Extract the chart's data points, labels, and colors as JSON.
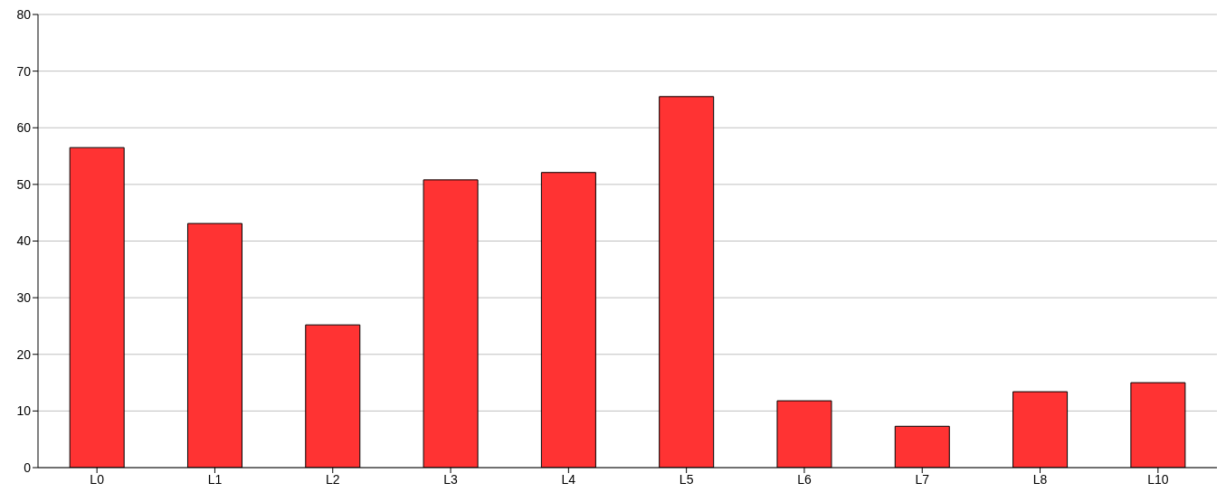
{
  "chart_data": {
    "type": "bar",
    "categories": [
      "L0",
      "L1",
      "L2",
      "L3",
      "L4",
      "L5",
      "L6",
      "L7",
      "L8",
      "L10"
    ],
    "values": [
      56.5,
      43.1,
      25.2,
      50.8,
      52.1,
      65.5,
      11.8,
      7.3,
      13.4,
      15.0
    ],
    "color": "#ff3333",
    "ylim": [
      0,
      80
    ],
    "yticks": [
      0,
      10,
      20,
      30,
      40,
      50,
      60,
      70,
      80
    ],
    "grid": "y"
  }
}
